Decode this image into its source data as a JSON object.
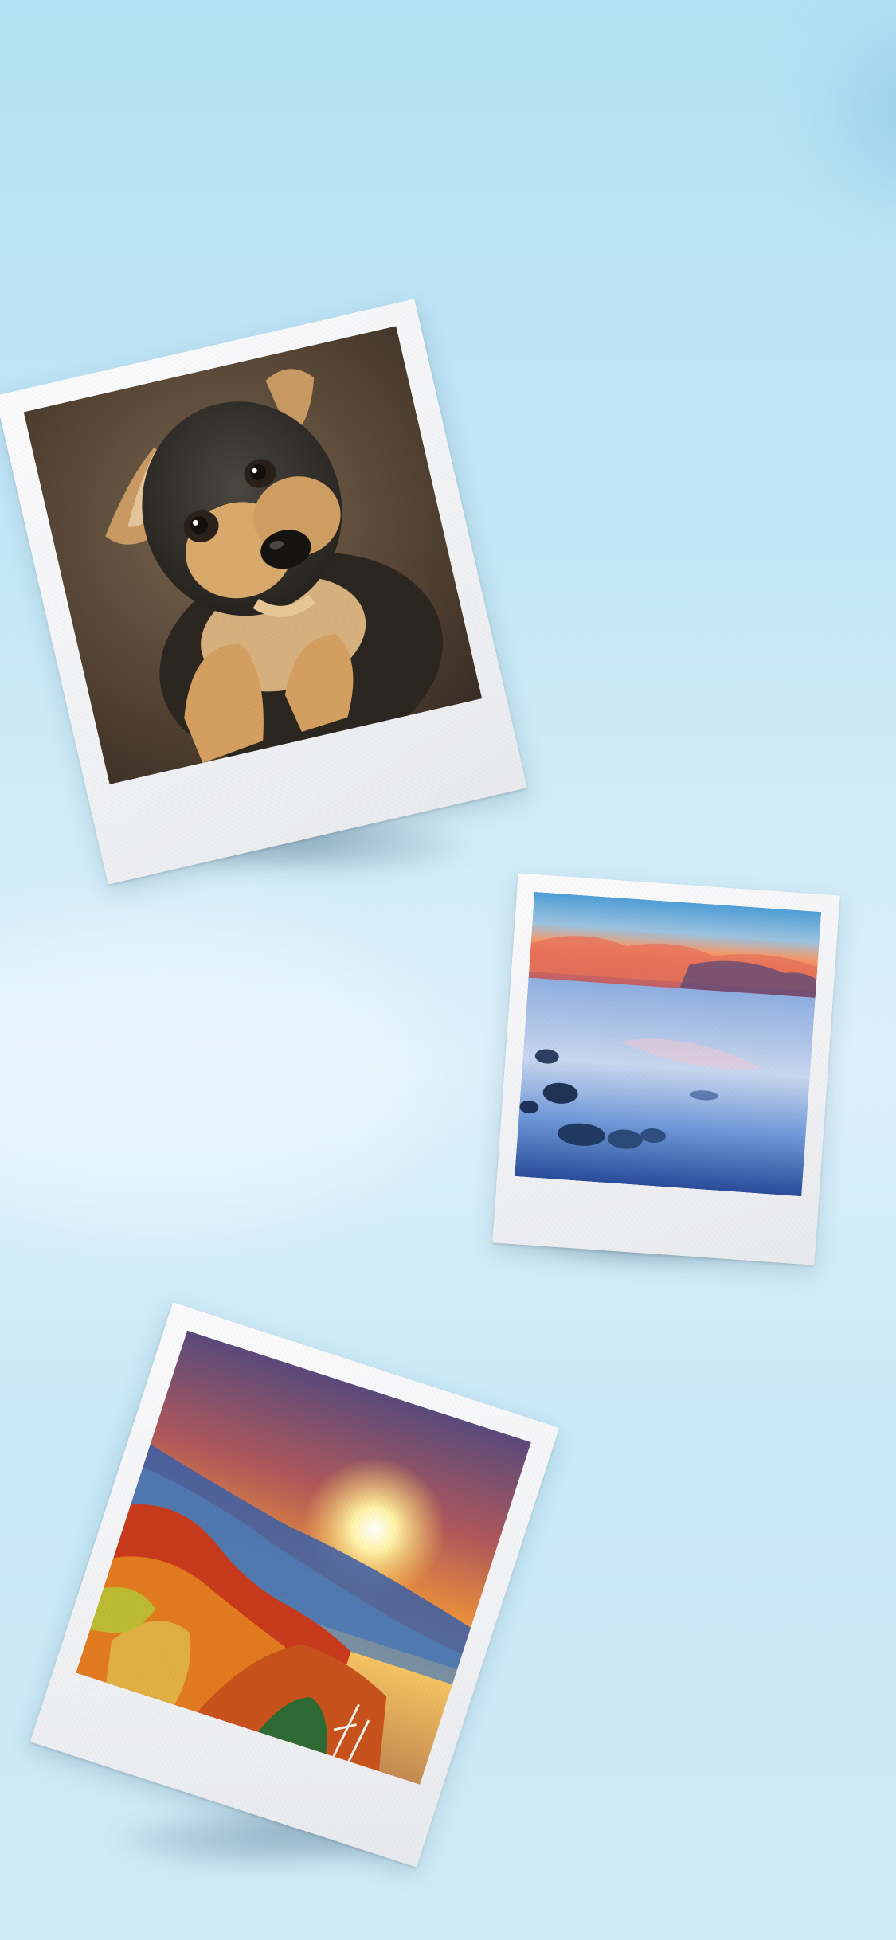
{
  "colors": {
    "background_top": "#b3e0f4",
    "background_mid": "#dbf0fa",
    "frame": "#f4f5f7"
  },
  "photos": [
    {
      "id": "dog",
      "subject": "puppy",
      "tilt_deg": -13
    },
    {
      "id": "sea",
      "subject": "seaside-sunset",
      "tilt_deg": 4
    },
    {
      "id": "autumn",
      "subject": "autumn-forest-sunset",
      "tilt_deg": 18
    }
  ]
}
